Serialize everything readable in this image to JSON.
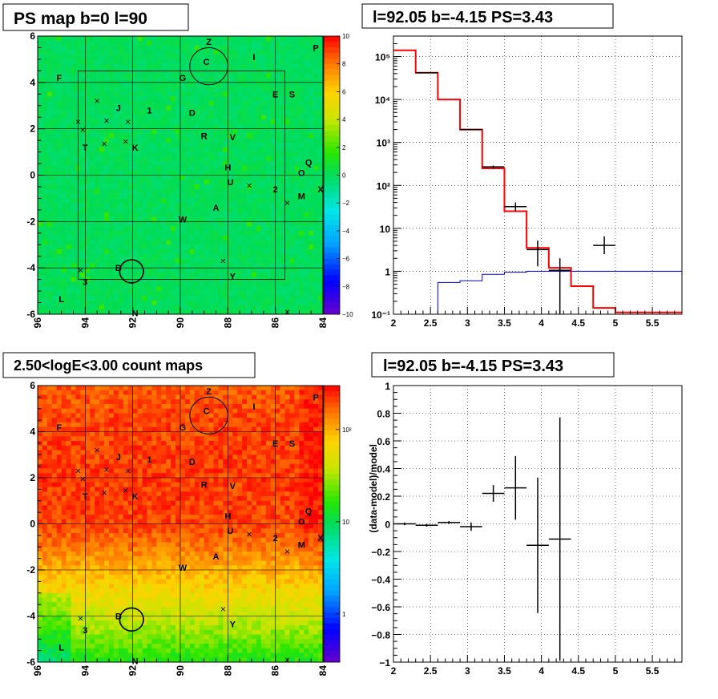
{
  "panels": {
    "ps_map": {
      "title": "PS map b=0 l=90"
    },
    "count_map": {
      "title": "2.50<logE<3.00 count maps"
    },
    "spectrum": {
      "title": "l=92.05 b=-4.15 PS=3.43"
    },
    "residual": {
      "title": "l=92.05 b=-4.15 PS=3.43",
      "ylabel": "(data-model)/model"
    }
  },
  "source_labels": [
    {
      "t": "Z",
      "l": 88.8,
      "b": 5.75
    },
    {
      "t": "C",
      "l": 88.9,
      "b": 4.9
    },
    {
      "t": "I",
      "l": 86.9,
      "b": 5.1
    },
    {
      "t": "P",
      "l": 84.3,
      "b": 5.5
    },
    {
      "t": "F",
      "l": 95.1,
      "b": 4.2
    },
    {
      "t": "G",
      "l": 89.9,
      "b": 4.2
    },
    {
      "t": "E",
      "l": 86.0,
      "b": 3.5
    },
    {
      "t": "S",
      "l": 85.3,
      "b": 3.5
    },
    {
      "t": "J",
      "l": 92.6,
      "b": 2.9
    },
    {
      "t": "1",
      "l": 91.3,
      "b": 2.8
    },
    {
      "t": "D",
      "l": 89.5,
      "b": 2.7
    },
    {
      "t": "R",
      "l": 89.0,
      "b": 1.7
    },
    {
      "t": "V",
      "l": 87.8,
      "b": 1.65
    },
    {
      "t": "T",
      "l": 94.0,
      "b": 1.2
    },
    {
      "t": "K",
      "l": 91.9,
      "b": 1.2
    },
    {
      "t": "H",
      "l": 88.0,
      "b": 0.35
    },
    {
      "t": "Q",
      "l": 84.6,
      "b": 0.55
    },
    {
      "t": "O",
      "l": 84.9,
      "b": 0.1
    },
    {
      "t": "U",
      "l": 87.9,
      "b": -0.3
    },
    {
      "t": "2",
      "l": 86.0,
      "b": -0.6
    },
    {
      "t": "M",
      "l": 84.9,
      "b": -0.9
    },
    {
      "t": "X",
      "l": 84.1,
      "b": -0.6
    },
    {
      "t": "A",
      "l": 88.5,
      "b": -1.4
    },
    {
      "t": "W",
      "l": 89.9,
      "b": -1.9
    },
    {
      "t": "B",
      "l": 92.6,
      "b": -4.0
    },
    {
      "t": "3",
      "l": 94.0,
      "b": -4.6
    },
    {
      "t": "Y",
      "l": 87.8,
      "b": -4.35
    },
    {
      "t": "L",
      "l": 95.0,
      "b": -5.35
    },
    {
      "t": "N",
      "l": 91.9,
      "b": -5.95
    }
  ],
  "cross_markers": [
    {
      "l": 93.5,
      "b": 3.2
    },
    {
      "l": 94.3,
      "b": 2.3
    },
    {
      "l": 94.1,
      "b": 1.95
    },
    {
      "l": 93.1,
      "b": 2.35
    },
    {
      "l": 92.2,
      "b": 2.3
    },
    {
      "l": 93.2,
      "b": 1.35
    },
    {
      "l": 92.3,
      "b": 1.45
    },
    {
      "l": 87.1,
      "b": -0.45
    },
    {
      "l": 85.5,
      "b": -1.2
    },
    {
      "l": 94.2,
      "b": -4.1
    },
    {
      "l": 88.2,
      "b": -3.7
    },
    {
      "l": 85.5,
      "b": -5.9
    }
  ],
  "circles": [
    {
      "l": 88.8,
      "b": 4.7,
      "r": 0.8
    },
    {
      "l": 92.05,
      "b": -4.15,
      "r": 0.5
    }
  ],
  "roi_box": {
    "l1": 94.3,
    "l2": 85.6,
    "b1": -4.5,
    "b2": 4.5
  },
  "colors": {
    "data": "#000000",
    "model": "#ff0000",
    "background": "#0000cc"
  },
  "chart_data": [
    {
      "type": "heatmap",
      "title": "PS map b=0 l=90",
      "xlim": [
        96,
        84
      ],
      "ylim": [
        -6,
        6
      ],
      "xticks": [
        "96",
        "94",
        "92",
        "90",
        "88",
        "86",
        "84"
      ],
      "yticks": [
        "-6",
        "-4",
        "-2",
        "0",
        "2",
        "4",
        "6"
      ],
      "zlim": [
        -10,
        10
      ],
      "zticks": [
        "10",
        "8",
        "6",
        "4",
        "2",
        "0",
        "−2",
        "−4",
        "−6",
        "−8",
        "−10"
      ],
      "color_scale": "rainbow",
      "dominant_level": 0.5
    },
    {
      "type": "heatmap",
      "title": "2.50<logE<3.00 count maps",
      "xlim": [
        96,
        84
      ],
      "ylim": [
        -6,
        6
      ],
      "xticks": [
        "96",
        "94",
        "92",
        "90",
        "88",
        "86",
        "84"
      ],
      "yticks": [
        "-6",
        "-4",
        "-2",
        "0",
        "2",
        "4",
        "6"
      ],
      "z_scale": "log",
      "zlim": [
        0.3,
        300
      ],
      "zticks": [
        "10²",
        "10",
        "1"
      ],
      "color_scale": "rainbow"
    },
    {
      "type": "line",
      "title": "l=92.05 b=-4.15 PS=3.43",
      "xlim": [
        2,
        5.9
      ],
      "ylim": [
        0.1,
        300000
      ],
      "y_scale": "log",
      "xticks": [
        "2",
        "2.5",
        "3",
        "3.5",
        "4",
        "4.5",
        "5",
        "5.5"
      ],
      "yticks": [
        "10⁻¹",
        "1",
        "10",
        "10²",
        "10³",
        "10⁴",
        "10⁵"
      ],
      "grid": true,
      "series": [
        {
          "style": "step",
          "edges": [
            2.0,
            2.3,
            2.6,
            2.9,
            3.2,
            3.5,
            3.8,
            4.1,
            4.4,
            4.7,
            5.0,
            5.3,
            5.9
          ],
          "values": [
            140000,
            42000,
            10000,
            2000,
            250,
            25,
            3.5,
            1.2,
            0.45,
            0.14,
            0.11,
            0.11
          ]
        },
        {
          "style": "step",
          "edges": [
            2.6,
            2.9,
            3.2,
            3.5,
            3.8,
            4.1,
            4.4,
            4.7,
            5.0,
            5.3,
            5.9
          ],
          "values": [
            0.55,
            0.6,
            0.85,
            0.95,
            1.0,
            1.0,
            1.0,
            1.0,
            1.0,
            1.0
          ]
        },
        {
          "style": "errorbar",
          "points": [
            {
              "x": 2.45,
              "y": 42000,
              "xerr": 0.15,
              "ylo": 41500,
              "yhi": 42500
            },
            {
              "x": 3.05,
              "y": 2000,
              "xerr": 0.15,
              "ylo": 1980,
              "yhi": 2020
            },
            {
              "x": 3.35,
              "y": 270,
              "xerr": 0.15,
              "ylo": 250,
              "yhi": 290
            },
            {
              "x": 3.65,
              "y": 32,
              "xerr": 0.15,
              "ylo": 25,
              "yhi": 40
            },
            {
              "x": 3.95,
              "y": 3.2,
              "xerr": 0.15,
              "ylo": 1.3,
              "yhi": 5.2
            },
            {
              "x": 4.25,
              "y": 1.05,
              "xerr": 0.15,
              "ylo": 0.1,
              "yhi": 2.0
            },
            {
              "x": 4.85,
              "y": 4.0,
              "xerr": 0.15,
              "ylo": 2.5,
              "yhi": 6.5
            }
          ]
        }
      ]
    },
    {
      "type": "scatter",
      "title": "l=92.05 b=-4.15 PS=3.43",
      "ylabel": "(data-model)/model",
      "xlim": [
        2,
        5.9
      ],
      "ylim": [
        -1,
        1
      ],
      "xticks": [
        "2",
        "2.5",
        "3",
        "3.5",
        "4",
        "4.5",
        "5",
        "5.5"
      ],
      "yticks": [
        "−1",
        "−0.8",
        "−0.6",
        "−0.4",
        "−0.2",
        "0",
        "0.2",
        "0.4",
        "0.6",
        "0.8",
        "1"
      ],
      "grid": true,
      "points": [
        {
          "x": 2.15,
          "y": 0.0,
          "xerr": 0.15,
          "yerr": 0.01
        },
        {
          "x": 2.45,
          "y": -0.01,
          "xerr": 0.15,
          "yerr": 0.01
        },
        {
          "x": 2.75,
          "y": 0.01,
          "xerr": 0.15,
          "yerr": 0.01
        },
        {
          "x": 3.05,
          "y": -0.02,
          "xerr": 0.15,
          "yerr": 0.03
        },
        {
          "x": 3.35,
          "y": 0.22,
          "xerr": 0.15,
          "yerr": 0.06
        },
        {
          "x": 3.65,
          "y": 0.26,
          "xerr": 0.15,
          "yerr": 0.23
        },
        {
          "x": 3.95,
          "y": -0.155,
          "xerr": 0.15,
          "yerr": 0.49
        },
        {
          "x": 4.25,
          "y": -0.11,
          "xerr": 0.15,
          "yerr": 0.88
        }
      ]
    }
  ]
}
